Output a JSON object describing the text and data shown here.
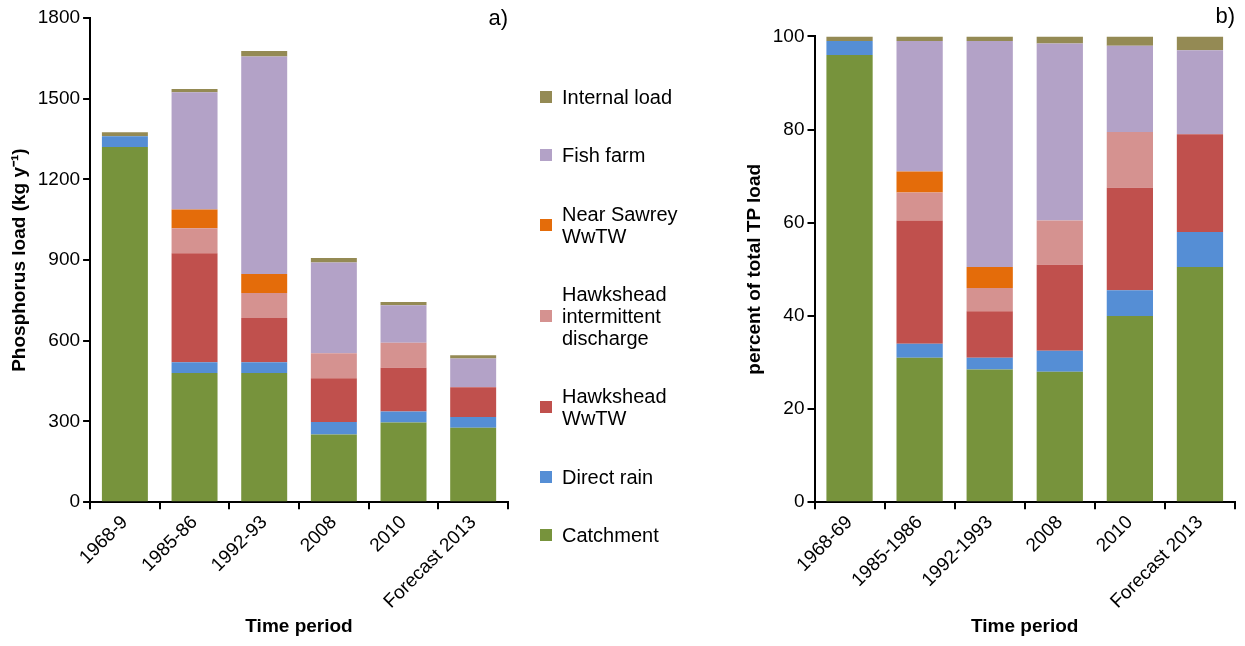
{
  "chart_data": [
    {
      "type": "bar",
      "title": "a)",
      "xlabel": "Time period",
      "ylabel": "Phosphorus load (kg y⁻¹)",
      "categories": [
        "1968-9",
        "1985-86",
        "1992-93",
        "2008",
        "2010",
        "Forecast 2013"
      ],
      "stacked": true,
      "ylim": [
        0,
        1800
      ],
      "yticks": [
        0,
        300,
        600,
        900,
        1200,
        1500,
        1800
      ],
      "grid": false,
      "legend": "right",
      "series": [
        {
          "name": "Catchment",
          "color": "#77933c",
          "values": [
            1320,
            480,
            480,
            252,
            296,
            277
          ]
        },
        {
          "name": "Direct rain",
          "color": "#558ed5",
          "values": [
            40,
            40,
            40,
            46,
            41,
            40
          ]
        },
        {
          "name": "Hawkshead WwTW",
          "color": "#c0504d",
          "values": [
            0,
            405,
            165,
            163,
            163,
            110
          ]
        },
        {
          "name": "Hawkshead intermittent discharge",
          "color": "#d59290",
          "values": [
            0,
            93,
            93,
            93,
            93,
            0
          ]
        },
        {
          "name": "Near Sawrey WwTW",
          "color": "#e46c0a",
          "values": [
            0,
            70,
            70,
            0,
            0,
            0
          ]
        },
        {
          "name": "Fish farm",
          "color": "#b3a2c7",
          "values": [
            0,
            436,
            809,
            337,
            139,
            107
          ]
        },
        {
          "name": "Internal load",
          "color": "#948a54",
          "values": [
            15,
            12,
            20,
            17,
            12,
            12
          ]
        }
      ]
    },
    {
      "type": "bar",
      "title": "b)",
      "xlabel": "Time period",
      "ylabel": "percent of total TP load",
      "categories": [
        "1968-69",
        "1985-1986",
        "1992-1993",
        "2008",
        "2010",
        "Forecast 2013"
      ],
      "stacked": true,
      "ylim": [
        0,
        100
      ],
      "yticks": [
        0,
        20,
        40,
        60,
        80,
        100
      ],
      "grid": false,
      "series": [
        {
          "color": "#77933c",
          "values": [
            96,
            31,
            28.5,
            28,
            40,
            50.5
          ]
        },
        {
          "color": "#558ed5",
          "values": [
            3,
            3,
            2.5,
            4.5,
            5.5,
            7.5
          ]
        },
        {
          "color": "#c0504d",
          "values": [
            0,
            26.5,
            10,
            18.5,
            22,
            21
          ]
        },
        {
          "color": "#d59290",
          "values": [
            0,
            6,
            5,
            9.5,
            12,
            0
          ]
        },
        {
          "color": "#e46c0a",
          "values": [
            0,
            4.5,
            4.5,
            0,
            0,
            0
          ]
        },
        {
          "color": "#b3a2c7",
          "values": [
            0,
            28,
            48.5,
            38,
            18.5,
            18
          ]
        },
        {
          "color": "#948a54",
          "values": [
            1,
            1,
            1,
            1.5,
            2,
            3
          ]
        }
      ]
    }
  ]
}
